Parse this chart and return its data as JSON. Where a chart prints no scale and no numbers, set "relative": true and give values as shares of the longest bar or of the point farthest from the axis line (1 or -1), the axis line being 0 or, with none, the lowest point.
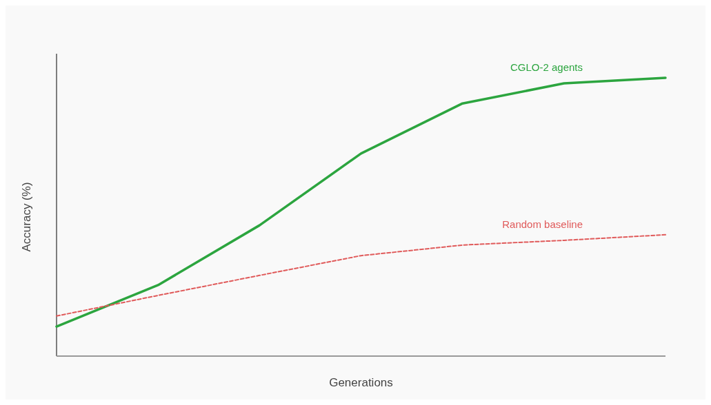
{
  "chart_data": {
    "type": "line",
    "relative": true,
    "xlabel": "Generations",
    "ylabel": "Accuracy (%)",
    "categories": [
      null,
      null,
      null,
      null,
      null,
      null,
      null
    ],
    "series": [
      {
        "name": "CGLO-2 agents",
        "color": "#2ca53f",
        "values": [
          0.106,
          0.255,
          0.47,
          0.728,
          0.908,
          0.98,
          1
        ],
        "line_style": "solid"
      },
      {
        "name": "Random baseline",
        "color": "#e05a5a",
        "values": [
          0.144,
          0.218,
          0.29,
          0.361,
          0.399,
          0.416,
          0.436
        ],
        "line_style": "dashed"
      }
    ],
    "marker": "none"
  }
}
